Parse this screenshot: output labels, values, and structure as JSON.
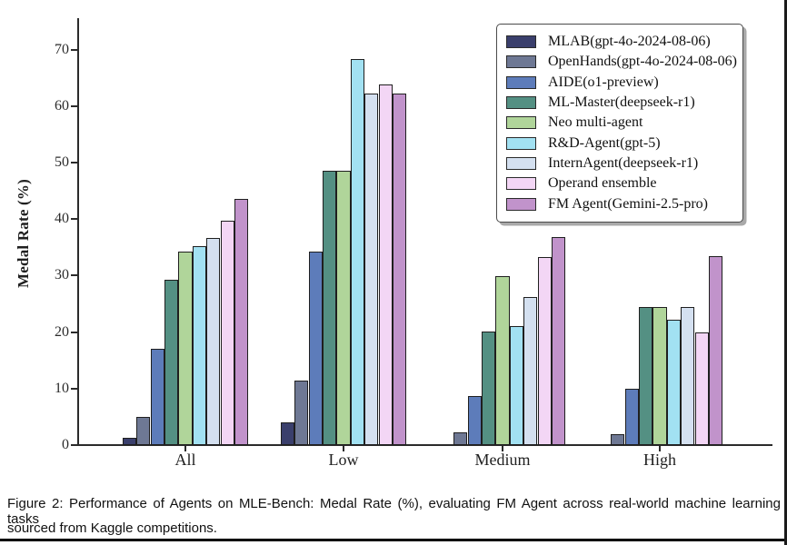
{
  "figure": {
    "caption_line1": "Figure 2: Performance of Agents on MLE-Bench: Medal Rate (%), evaluating FM Agent across real-world machine learning tasks",
    "caption_line2": "sourced from Kaggle competitions."
  },
  "chart_data": {
    "type": "bar",
    "title": "",
    "xlabel": "",
    "ylabel": "Medal Rate (%)",
    "categories": [
      "All",
      "Low",
      "Medium",
      "High"
    ],
    "yticks": [
      0,
      10,
      20,
      30,
      40,
      50,
      60,
      70
    ],
    "ylim": [
      0,
      75.6
    ],
    "grid": false,
    "legend_position": "upper right",
    "bar_edge_color": "#1f1f1f",
    "series": [
      {
        "name": "MLAB(gpt-4o-2024-08-06)",
        "color": "#3a3f6c",
        "values": [
          1.3,
          4.1,
          0,
          0
        ]
      },
      {
        "name": "OpenHands(gpt-4o-2024-08-06)",
        "color": "#6e7894",
        "values": [
          5.0,
          11.4,
          2.2,
          1.9
        ]
      },
      {
        "name": "AIDE(o1-preview)",
        "color": "#5d7cba",
        "values": [
          17.0,
          34.3,
          8.7,
          9.9
        ]
      },
      {
        "name": "ML-Master(deepseek-r1)",
        "color": "#549083",
        "values": [
          29.3,
          48.6,
          20.1,
          24.5
        ]
      },
      {
        "name": "Neo multi-agent",
        "color": "#b0d59a",
        "values": [
          34.2,
          48.6,
          29.9,
          24.5
        ]
      },
      {
        "name": "R&D-Agent(gpt-5)",
        "color": "#a2e1f2",
        "values": [
          35.3,
          68.3,
          21.0,
          22.2
        ]
      },
      {
        "name": "InternAgent(deepseek-r1)",
        "color": "#d4e0f0",
        "values": [
          36.6,
          62.3,
          26.3,
          24.5
        ]
      },
      {
        "name": "Operand ensemble",
        "color": "#f3d6f5",
        "values": [
          39.7,
          63.8,
          33.3,
          20.0
        ]
      },
      {
        "name": "FM Agent(Gemini-2.5-pro)",
        "color": "#c193cb",
        "values": [
          43.6,
          62.3,
          36.8,
          33.4
        ]
      }
    ]
  }
}
